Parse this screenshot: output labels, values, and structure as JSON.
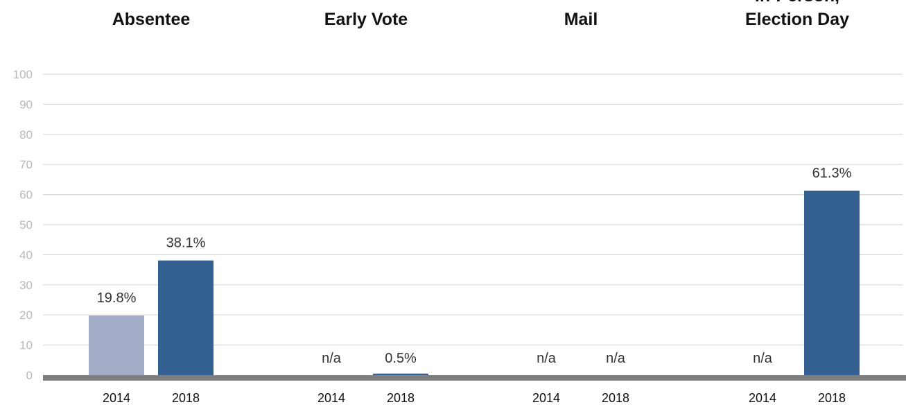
{
  "chart_data": {
    "type": "bar",
    "groups": [
      {
        "title_lines": [
          "Absentee"
        ],
        "bars": [
          {
            "year": "2014",
            "value": 19.8,
            "label": "19.8%"
          },
          {
            "year": "2018",
            "value": 38.1,
            "label": "38.1%"
          }
        ]
      },
      {
        "title_lines": [
          "Early Vote"
        ],
        "bars": [
          {
            "year": "2014",
            "value": 0,
            "label": "n/a"
          },
          {
            "year": "2018",
            "value": 0.5,
            "label": "0.5%"
          }
        ]
      },
      {
        "title_lines": [
          "Mail"
        ],
        "bars": [
          {
            "year": "2014",
            "value": 0,
            "label": "n/a"
          },
          {
            "year": "2018",
            "value": 0,
            "label": "n/a"
          }
        ]
      },
      {
        "title_lines": [
          "In-Person,",
          "Election Day"
        ],
        "bars": [
          {
            "year": "2014",
            "value": 0,
            "label": "n/a"
          },
          {
            "year": "2018",
            "value": 61.3,
            "label": "61.3%"
          }
        ]
      }
    ],
    "yticks": [
      "0",
      "10",
      "20",
      "30",
      "40",
      "50",
      "60",
      "70",
      "80",
      "90",
      "100"
    ],
    "ylim": [
      0,
      100
    ],
    "grid": true,
    "colors": {
      "2014": "#a4adc8",
      "2018": "#345f91",
      "gridline": "#d9d9d9",
      "baseline": "#7f7f7f",
      "tick_text": "#b8b8b8"
    }
  }
}
